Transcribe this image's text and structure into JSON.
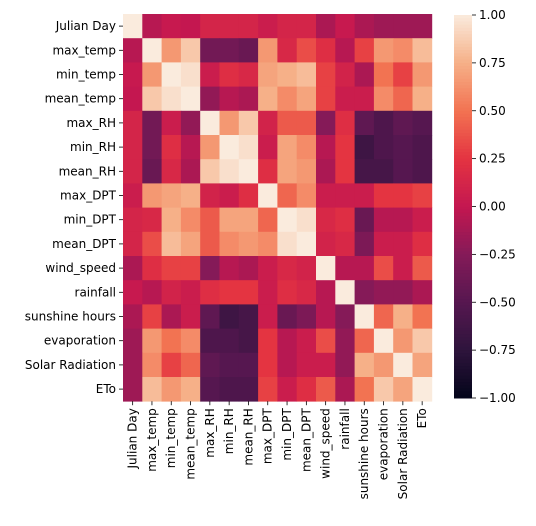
{
  "chart_data": {
    "type": "heatmap",
    "title": "",
    "xlabel": "",
    "ylabel": "",
    "variables": [
      "Julian Day",
      "max_temp",
      "min_temp",
      "mean_temp",
      "max_RH",
      "min_RH",
      "mean_RH",
      "max_DPT",
      "min_DPT",
      "mean_DPT",
      "wind_speed",
      "rainfall",
      "sunshine hours",
      "evaporation",
      "Solar Radiation",
      "ETo"
    ],
    "matrix": [
      [
        1.0,
        -0.05,
        0.02,
        0.0,
        0.12,
        0.12,
        0.12,
        0.05,
        0.12,
        0.12,
        -0.1,
        0.02,
        -0.1,
        -0.15,
        -0.15,
        -0.15
      ],
      [
        -0.05,
        1.0,
        0.65,
        0.85,
        -0.35,
        -0.35,
        -0.4,
        0.65,
        0.15,
        0.35,
        0.2,
        -0.05,
        0.3,
        0.65,
        0.6,
        0.8
      ],
      [
        0.02,
        0.65,
        1.0,
        0.95,
        0.05,
        0.2,
        0.15,
        0.7,
        0.75,
        0.8,
        0.3,
        0.1,
        -0.1,
        0.5,
        0.3,
        0.65
      ],
      [
        0.0,
        0.85,
        0.95,
        1.0,
        -0.2,
        -0.05,
        -0.1,
        0.75,
        0.6,
        0.7,
        0.3,
        0.05,
        0.05,
        0.6,
        0.45,
        0.75
      ],
      [
        0.12,
        -0.35,
        0.05,
        -0.2,
        1.0,
        0.65,
        0.85,
        0.1,
        0.4,
        0.4,
        -0.25,
        0.2,
        -0.45,
        -0.55,
        -0.45,
        -0.5
      ],
      [
        0.12,
        -0.35,
        0.2,
        -0.05,
        0.65,
        1.0,
        0.95,
        0.05,
        0.7,
        0.6,
        -0.05,
        0.25,
        -0.65,
        -0.55,
        -0.5,
        -0.55
      ],
      [
        0.12,
        -0.4,
        0.15,
        -0.1,
        0.85,
        0.95,
        1.0,
        0.2,
        0.7,
        0.65,
        -0.1,
        0.25,
        -0.6,
        -0.6,
        -0.5,
        -0.55
      ],
      [
        0.05,
        0.65,
        0.7,
        0.75,
        0.1,
        0.05,
        0.2,
        1.0,
        0.45,
        0.6,
        0.05,
        0.05,
        0.05,
        0.25,
        0.25,
        0.3
      ],
      [
        0.12,
        0.15,
        0.75,
        0.6,
        0.4,
        0.7,
        0.7,
        0.45,
        1.0,
        0.95,
        0.15,
        0.2,
        -0.4,
        -0.05,
        -0.05,
        0.05
      ],
      [
        0.12,
        0.35,
        0.8,
        0.7,
        0.4,
        0.6,
        0.65,
        0.6,
        0.95,
        1.0,
        0.1,
        0.15,
        -0.3,
        0.05,
        0.05,
        0.2
      ],
      [
        -0.1,
        0.2,
        0.3,
        0.3,
        -0.25,
        -0.05,
        -0.1,
        0.05,
        0.15,
        0.1,
        1.0,
        -0.05,
        -0.05,
        0.35,
        0.05,
        0.4
      ],
      [
        0.02,
        -0.05,
        0.1,
        0.05,
        0.2,
        0.25,
        0.25,
        0.05,
        0.2,
        0.15,
        -0.05,
        1.0,
        -0.25,
        -0.2,
        -0.2,
        -0.1
      ],
      [
        -0.1,
        0.3,
        -0.1,
        0.05,
        -0.45,
        -0.65,
        -0.6,
        0.05,
        -0.4,
        -0.3,
        -0.05,
        -0.25,
        1.0,
        0.45,
        0.75,
        0.5
      ],
      [
        -0.15,
        0.65,
        0.5,
        0.6,
        -0.55,
        -0.55,
        -0.6,
        0.25,
        -0.05,
        0.05,
        0.35,
        -0.2,
        0.45,
        1.0,
        0.65,
        0.85
      ],
      [
        -0.15,
        0.6,
        0.3,
        0.45,
        -0.45,
        -0.5,
        -0.5,
        0.25,
        -0.05,
        0.05,
        0.05,
        -0.2,
        0.75,
        0.65,
        1.0,
        0.7
      ],
      [
        -0.15,
        0.8,
        0.65,
        0.75,
        -0.5,
        -0.55,
        -0.55,
        0.3,
        0.05,
        0.2,
        0.4,
        -0.1,
        0.5,
        0.85,
        0.7,
        1.0
      ]
    ],
    "vmin": -1.0,
    "vmax": 1.0,
    "colorbar_ticks": [
      "1.00",
      "0.75",
      "0.50",
      "0.25",
      "0.00",
      "−0.25",
      "−0.50",
      "−0.75",
      "−1.00"
    ],
    "colormap": "rocket",
    "colorbar_placement": "right",
    "grid": false
  }
}
